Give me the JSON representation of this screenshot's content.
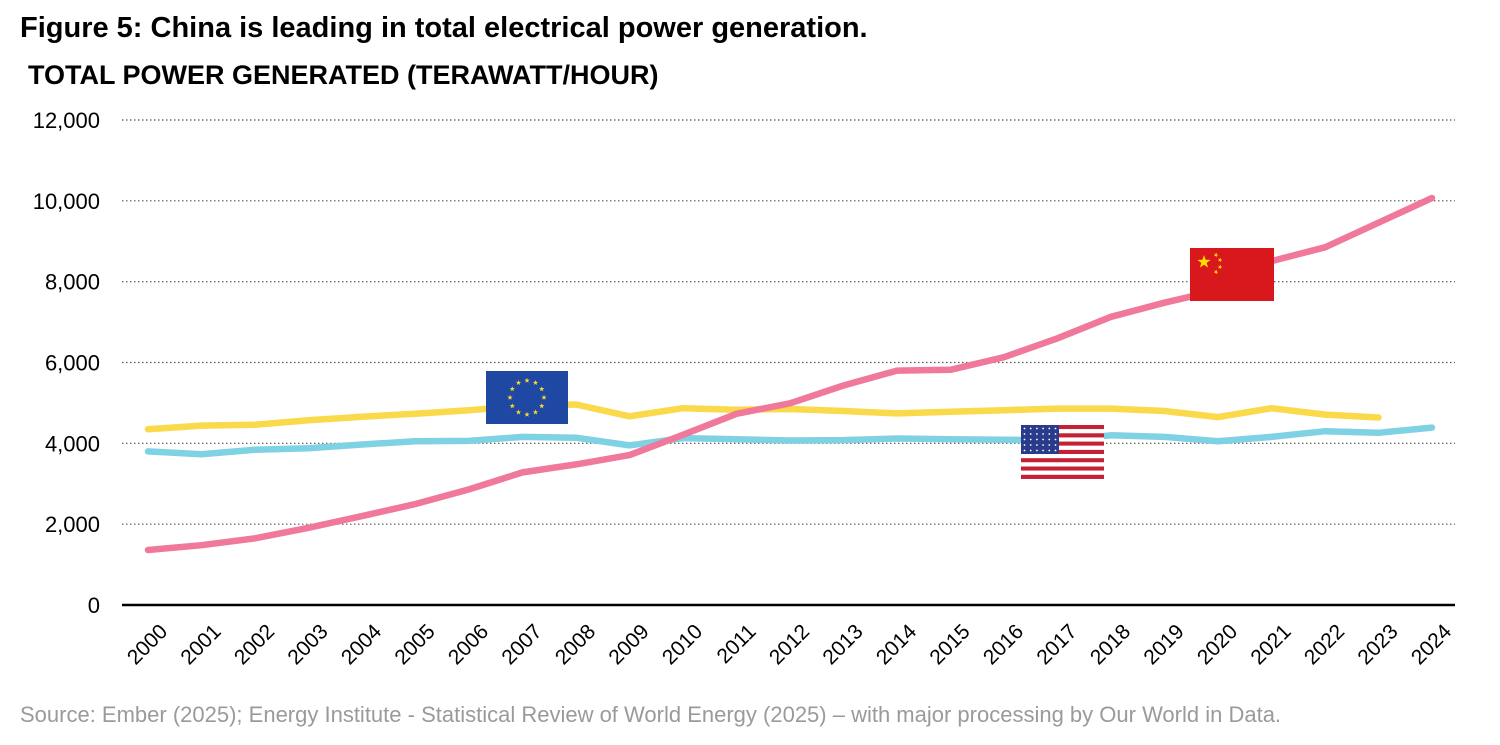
{
  "figure_title": "Figure 5: China is leading in total electrical power generation.",
  "source": "Source: Ember (2025); Energy Institute - Statistical Review of World Energy (2025) – with major processing by Our World in Data.",
  "colors": {
    "china": "#f0789a",
    "eu": "#fad94a",
    "us": "#7fd2e3",
    "grid": "#555555",
    "axis": "#000000"
  },
  "chart_data": {
    "type": "line",
    "title": "TOTAL POWER GENERATED (TERAWATT/HOUR)",
    "xlabel": "",
    "ylabel": "",
    "ylim": [
      0,
      12000
    ],
    "yticks": [
      0,
      2000,
      4000,
      6000,
      8000,
      10000,
      12000
    ],
    "ytick_labels": [
      "0",
      "2,000",
      "4,000",
      "6,000",
      "8,000",
      "10,000",
      "12,000"
    ],
    "grid": true,
    "categories": [
      "2000",
      "2001",
      "2002",
      "2003",
      "2004",
      "2005",
      "2006",
      "2007",
      "2008",
      "2009",
      "2010",
      "2011",
      "2012",
      "2013",
      "2014",
      "2015",
      "2016",
      "2017",
      "2018",
      "2019",
      "2020",
      "2021",
      "2022",
      "2023",
      "2024"
    ],
    "series": [
      {
        "name": "China",
        "flag": "china-flag-icon",
        "values": [
          1360,
          1480,
          1650,
          1910,
          2200,
          2500,
          2860,
          3280,
          3480,
          3710,
          4210,
          4730,
          4990,
          5430,
          5800,
          5820,
          6130,
          6600,
          7130,
          7480,
          7790,
          8510,
          8850,
          9460,
          10070
        ]
      },
      {
        "name": "European Union",
        "flag": "eu-flag-icon",
        "values": [
          4350,
          4440,
          4460,
          4570,
          4660,
          4730,
          4820,
          4930,
          4960,
          4670,
          4870,
          4830,
          4850,
          4800,
          4740,
          4780,
          4820,
          4860,
          4860,
          4800,
          4650,
          4870,
          4710,
          4640,
          null
        ]
      },
      {
        "name": "United States",
        "flag": "us-flag-icon",
        "values": [
          3800,
          3730,
          3840,
          3880,
          3970,
          4050,
          4060,
          4160,
          4140,
          3950,
          4130,
          4100,
          4070,
          4080,
          4120,
          4100,
          4090,
          4070,
          4200,
          4160,
          4050,
          4160,
          4300,
          4260,
          4390
        ]
      }
    ]
  }
}
